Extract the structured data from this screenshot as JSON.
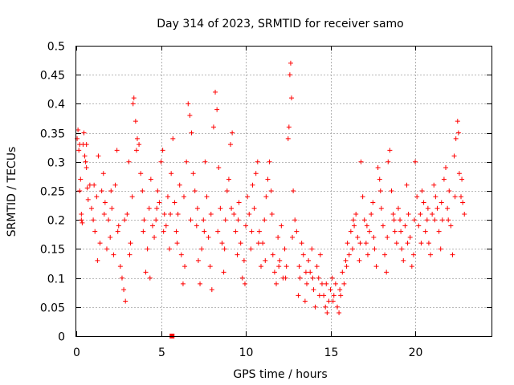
{
  "chart_data": {
    "type": "scatter",
    "title": "Day 314 of 2023, SRMTID for receiver samo",
    "xlabel": "GPS time / hours",
    "ylabel": "SRMTID / TECUs",
    "xlim": [
      0,
      24.5
    ],
    "ylim": [
      0,
      0.5
    ],
    "xticks": [
      0,
      5,
      10,
      15,
      20
    ],
    "xtick_labels": [
      "0",
      "5",
      "10",
      "15",
      "20"
    ],
    "yticks": [
      0,
      0.05,
      0.1,
      0.15,
      0.2,
      0.25,
      0.3,
      0.35,
      0.4,
      0.45,
      0.5
    ],
    "ytick_labels": [
      "0",
      "0.05",
      "0.1",
      "0.15",
      "0.2",
      "0.25",
      "0.3",
      "0.35",
      "0.4",
      "0.45",
      "0.5"
    ],
    "grid": true,
    "marker": "plus",
    "series": [
      {
        "name": "SRMTID",
        "color": "#ff0000",
        "points": [
          [
            0.05,
            0.34
          ],
          [
            0.1,
            0.355
          ],
          [
            0.15,
            0.32
          ],
          [
            0.2,
            0.25
          ],
          [
            0.25,
            0.27
          ],
          [
            0.3,
            0.21
          ],
          [
            0.35,
            0.195
          ],
          [
            0.4,
            0.33
          ],
          [
            0.45,
            0.35
          ],
          [
            0.5,
            0.31
          ],
          [
            0.55,
            0.3
          ],
          [
            0.6,
            0.33
          ],
          [
            0.65,
            0.255
          ],
          [
            0.7,
            0.235
          ],
          [
            0.8,
            0.26
          ],
          [
            0.9,
            0.22
          ],
          [
            1.0,
            0.2
          ],
          [
            1.1,
            0.18
          ],
          [
            1.2,
            0.24
          ],
          [
            1.3,
            0.31
          ],
          [
            1.4,
            0.16
          ],
          [
            1.5,
            0.25
          ],
          [
            1.6,
            0.28
          ],
          [
            1.7,
            0.23
          ],
          [
            1.8,
            0.15
          ],
          [
            1.9,
            0.2
          ],
          [
            2.0,
            0.17
          ],
          [
            2.1,
            0.22
          ],
          [
            2.2,
            0.14
          ],
          [
            2.3,
            0.26
          ],
          [
            2.4,
            0.32
          ],
          [
            2.5,
            0.19
          ],
          [
            2.6,
            0.12
          ],
          [
            2.7,
            0.1
          ],
          [
            2.8,
            0.08
          ],
          [
            2.9,
            0.06
          ],
          [
            3.0,
            0.21
          ],
          [
            3.1,
            0.3
          ],
          [
            3.2,
            0.16
          ],
          [
            3.3,
            0.24
          ],
          [
            3.35,
            0.4
          ],
          [
            3.4,
            0.41
          ],
          [
            3.5,
            0.37
          ],
          [
            3.6,
            0.34
          ],
          [
            3.7,
            0.33
          ],
          [
            3.8,
            0.28
          ],
          [
            3.9,
            0.25
          ],
          [
            4.0,
            0.2
          ],
          [
            4.1,
            0.11
          ],
          [
            4.2,
            0.15
          ],
          [
            4.3,
            0.22
          ],
          [
            4.4,
            0.27
          ],
          [
            4.5,
            0.19
          ],
          [
            4.6,
            0.17
          ],
          [
            4.7,
            0.2
          ],
          [
            4.8,
            0.25
          ],
          [
            4.9,
            0.23
          ],
          [
            5.0,
            0.3
          ],
          [
            5.1,
            0.32
          ],
          [
            5.2,
            0.21
          ],
          [
            5.3,
            0.19
          ],
          [
            5.4,
            0.24
          ],
          [
            5.5,
            0.15
          ],
          [
            5.6,
            0.28
          ],
          [
            5.7,
            0.34
          ],
          [
            5.8,
            0.23
          ],
          [
            5.9,
            0.18
          ],
          [
            6.0,
            0.21
          ],
          [
            6.1,
            0.26
          ],
          [
            6.2,
            0.14
          ],
          [
            6.3,
            0.09
          ],
          [
            6.4,
            0.12
          ],
          [
            6.5,
            0.3
          ],
          [
            6.6,
            0.4
          ],
          [
            6.7,
            0.38
          ],
          [
            6.8,
            0.35
          ],
          [
            6.9,
            0.28
          ],
          [
            7.0,
            0.25
          ],
          [
            7.1,
            0.19
          ],
          [
            7.2,
            0.13
          ],
          [
            7.3,
            0.09
          ],
          [
            7.4,
            0.15
          ],
          [
            7.5,
            0.2
          ],
          [
            7.6,
            0.3
          ],
          [
            7.7,
            0.24
          ],
          [
            7.8,
            0.17
          ],
          [
            7.9,
            0.12
          ],
          [
            8.0,
            0.08
          ],
          [
            8.1,
            0.36
          ],
          [
            8.2,
            0.42
          ],
          [
            8.3,
            0.39
          ],
          [
            8.4,
            0.29
          ],
          [
            8.5,
            0.22
          ],
          [
            8.6,
            0.16
          ],
          [
            8.7,
            0.11
          ],
          [
            8.8,
            0.2
          ],
          [
            8.9,
            0.25
          ],
          [
            9.0,
            0.27
          ],
          [
            9.1,
            0.33
          ],
          [
            9.2,
            0.35
          ],
          [
            9.3,
            0.21
          ],
          [
            9.4,
            0.18
          ],
          [
            9.5,
            0.14
          ],
          [
            9.6,
            0.23
          ],
          [
            9.7,
            0.16
          ],
          [
            9.8,
            0.1
          ],
          [
            9.9,
            0.13
          ],
          [
            10.0,
            0.19
          ],
          [
            10.1,
            0.24
          ],
          [
            10.2,
            0.21
          ],
          [
            10.3,
            0.15
          ],
          [
            10.4,
            0.26
          ],
          [
            10.5,
            0.22
          ],
          [
            10.6,
            0.28
          ],
          [
            10.7,
            0.3
          ],
          [
            10.8,
            0.18
          ],
          [
            10.9,
            0.12
          ],
          [
            11.0,
            0.16
          ],
          [
            11.1,
            0.2
          ],
          [
            11.2,
            0.24
          ],
          [
            11.3,
            0.27
          ],
          [
            11.4,
            0.3
          ],
          [
            11.5,
            0.25
          ],
          [
            11.6,
            0.14
          ],
          [
            11.7,
            0.11
          ],
          [
            11.8,
            0.09
          ],
          [
            11.9,
            0.17
          ],
          [
            12.0,
            0.13
          ],
          [
            12.1,
            0.19
          ],
          [
            12.2,
            0.1
          ],
          [
            12.3,
            0.15
          ],
          [
            12.4,
            0.12
          ],
          [
            12.5,
            0.34
          ],
          [
            12.55,
            0.36
          ],
          [
            12.6,
            0.45
          ],
          [
            12.65,
            0.47
          ],
          [
            12.7,
            0.41
          ],
          [
            12.8,
            0.25
          ],
          [
            12.9,
            0.2
          ],
          [
            13.0,
            0.18
          ],
          [
            13.1,
            0.07
          ],
          [
            13.2,
            0.1
          ],
          [
            13.3,
            0.16
          ],
          [
            13.4,
            0.14
          ],
          [
            13.5,
            0.06
          ],
          [
            13.6,
            0.09
          ],
          [
            13.7,
            0.13
          ],
          [
            13.8,
            0.11
          ],
          [
            13.9,
            0.15
          ],
          [
            14.0,
            0.08
          ],
          [
            14.1,
            0.05
          ],
          [
            14.2,
            0.12
          ],
          [
            14.3,
            0.1
          ],
          [
            14.4,
            0.14
          ],
          [
            14.5,
            0.09
          ],
          [
            14.6,
            0.07
          ],
          [
            14.7,
            0.05
          ],
          [
            14.8,
            0.04
          ],
          [
            14.9,
            0.06
          ],
          [
            15.0,
            0.08
          ],
          [
            15.1,
            0.1
          ],
          [
            15.2,
            0.07
          ],
          [
            15.3,
            0.09
          ],
          [
            15.4,
            0.05
          ],
          [
            15.5,
            0.04
          ],
          [
            15.6,
            0.07
          ],
          [
            15.7,
            0.11
          ],
          [
            15.8,
            0.09
          ],
          [
            15.9,
            0.13
          ],
          [
            16.0,
            0.16
          ],
          [
            16.1,
            0.14
          ],
          [
            16.2,
            0.18
          ],
          [
            16.3,
            0.15
          ],
          [
            16.4,
            0.19
          ],
          [
            16.5,
            0.21
          ],
          [
            16.6,
            0.17
          ],
          [
            16.7,
            0.13
          ],
          [
            16.8,
            0.3
          ],
          [
            16.9,
            0.24
          ],
          [
            17.0,
            0.2
          ],
          [
            17.1,
            0.16
          ],
          [
            17.2,
            0.14
          ],
          [
            17.3,
            0.18
          ],
          [
            17.4,
            0.21
          ],
          [
            17.5,
            0.23
          ],
          [
            17.6,
            0.15
          ],
          [
            17.7,
            0.12
          ],
          [
            17.8,
            0.29
          ],
          [
            17.9,
            0.27
          ],
          [
            18.0,
            0.22
          ],
          [
            18.1,
            0.19
          ],
          [
            18.2,
            0.14
          ],
          [
            18.3,
            0.11
          ],
          [
            18.4,
            0.3
          ],
          [
            18.5,
            0.32
          ],
          [
            18.6,
            0.25
          ],
          [
            18.7,
            0.21
          ],
          [
            18.8,
            0.18
          ],
          [
            18.9,
            0.16
          ],
          [
            19.0,
            0.22
          ],
          [
            19.1,
            0.2
          ],
          [
            19.2,
            0.15
          ],
          [
            19.3,
            0.13
          ],
          [
            19.4,
            0.19
          ],
          [
            19.5,
            0.26
          ],
          [
            19.6,
            0.21
          ],
          [
            19.7,
            0.17
          ],
          [
            19.8,
            0.12
          ],
          [
            19.9,
            0.14
          ],
          [
            20.0,
            0.3
          ],
          [
            20.1,
            0.24
          ],
          [
            20.2,
            0.19
          ],
          [
            20.3,
            0.21
          ],
          [
            20.4,
            0.25
          ],
          [
            20.5,
            0.23
          ],
          [
            20.6,
            0.18
          ],
          [
            20.7,
            0.2
          ],
          [
            20.8,
            0.16
          ],
          [
            20.9,
            0.14
          ],
          [
            21.0,
            0.21
          ],
          [
            21.1,
            0.26
          ],
          [
            21.2,
            0.24
          ],
          [
            21.3,
            0.22
          ],
          [
            21.4,
            0.18
          ],
          [
            21.5,
            0.15
          ],
          [
            21.6,
            0.2
          ],
          [
            21.7,
            0.27
          ],
          [
            21.8,
            0.29
          ],
          [
            21.9,
            0.22
          ],
          [
            22.0,
            0.25
          ],
          [
            22.1,
            0.19
          ],
          [
            22.2,
            0.14
          ],
          [
            22.3,
            0.31
          ],
          [
            22.4,
            0.34
          ],
          [
            22.5,
            0.37
          ],
          [
            22.55,
            0.35
          ],
          [
            22.6,
            0.28
          ],
          [
            22.7,
            0.24
          ],
          [
            22.8,
            0.23
          ],
          [
            22.9,
            0.21
          ],
          [
            0.2,
            0.33
          ],
          [
            0.3,
            0.2
          ],
          [
            0.6,
            0.29
          ],
          [
            1.05,
            0.26
          ],
          [
            1.25,
            0.13
          ],
          [
            1.65,
            0.21
          ],
          [
            2.05,
            0.25
          ],
          [
            2.45,
            0.18
          ],
          [
            2.85,
            0.2
          ],
          [
            3.15,
            0.14
          ],
          [
            3.55,
            0.32
          ],
          [
            3.95,
            0.18
          ],
          [
            4.35,
            0.1
          ],
          [
            4.75,
            0.22
          ],
          [
            5.15,
            0.18
          ],
          [
            5.55,
            0.21
          ],
          [
            5.95,
            0.16
          ],
          [
            6.35,
            0.24
          ],
          [
            6.75,
            0.2
          ],
          [
            7.15,
            0.22
          ],
          [
            7.55,
            0.18
          ],
          [
            7.95,
            0.21
          ],
          [
            8.35,
            0.18
          ],
          [
            8.75,
            0.15
          ],
          [
            9.15,
            0.22
          ],
          [
            9.55,
            0.2
          ],
          [
            9.95,
            0.09
          ],
          [
            10.35,
            0.18
          ],
          [
            10.75,
            0.16
          ],
          [
            11.15,
            0.13
          ],
          [
            11.55,
            0.21
          ],
          [
            11.95,
            0.12
          ],
          [
            12.35,
            0.1
          ],
          [
            12.75,
            0.17
          ],
          [
            13.15,
            0.12
          ],
          [
            13.55,
            0.11
          ],
          [
            13.95,
            0.1
          ],
          [
            14.35,
            0.07
          ],
          [
            14.75,
            0.09
          ],
          [
            15.15,
            0.06
          ],
          [
            15.55,
            0.08
          ],
          [
            15.95,
            0.12
          ],
          [
            16.35,
            0.2
          ],
          [
            16.75,
            0.16
          ],
          [
            17.15,
            0.19
          ],
          [
            17.55,
            0.17
          ],
          [
            17.95,
            0.25
          ],
          [
            18.35,
            0.17
          ],
          [
            18.75,
            0.2
          ],
          [
            19.15,
            0.18
          ],
          [
            19.55,
            0.16
          ],
          [
            19.95,
            0.2
          ],
          [
            20.35,
            0.16
          ],
          [
            20.75,
            0.22
          ],
          [
            21.15,
            0.2
          ],
          [
            21.55,
            0.23
          ],
          [
            21.95,
            0.2
          ],
          [
            22.35,
            0.24
          ],
          [
            22.75,
            0.27
          ]
        ]
      },
      {
        "name": "marker",
        "color": "#ff0000",
        "points": [
          [
            5.65,
            0.0
          ]
        ]
      }
    ]
  }
}
